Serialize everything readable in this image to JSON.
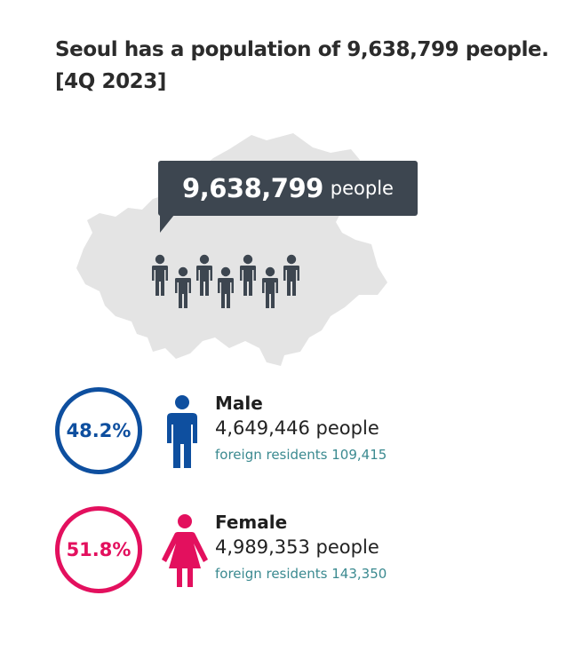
{
  "headline": {
    "line1": "Seoul has a population of 9,638,799 people.",
    "line2": "[4Q 2023]"
  },
  "bubble": {
    "number": "9,638,799",
    "unit": "people"
  },
  "map": {
    "color": "#e4e4e4"
  },
  "male": {
    "percent": "48.2%",
    "label": "Male",
    "count": "4,649,446 people",
    "foreign": "foreign residents 109,415",
    "color": "#0e4f9f"
  },
  "female": {
    "percent": "51.8%",
    "label": "Female",
    "count": "4,989,353 people",
    "foreign": "foreign residents 143,350",
    "color": "#e3105e"
  },
  "icons": {
    "map": "seoul-map-icon",
    "crowd": "people-crowd-icon",
    "male": "male-person-icon",
    "female": "female-person-icon"
  }
}
